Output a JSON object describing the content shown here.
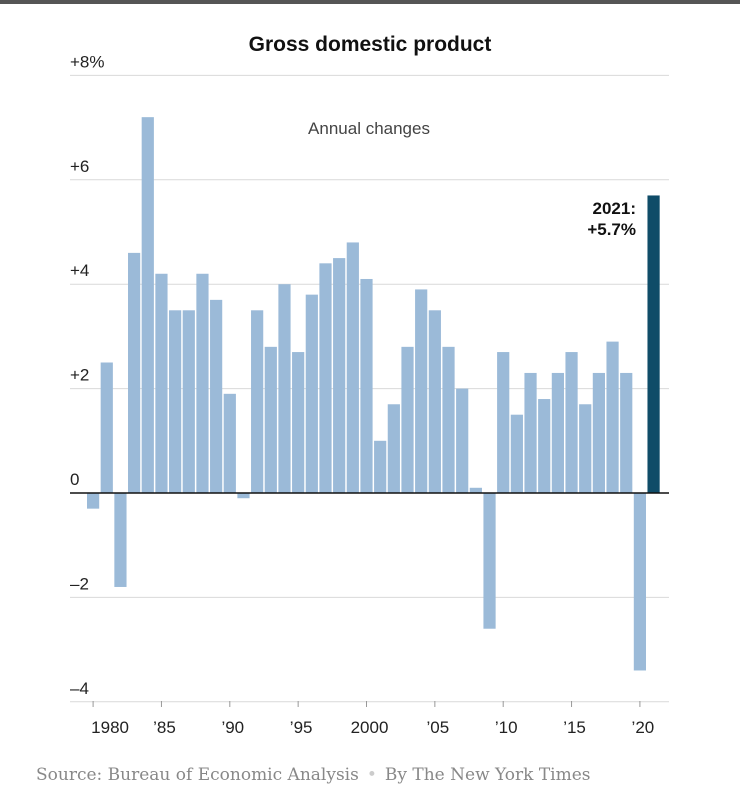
{
  "colors": {
    "bar": "#9bbad8",
    "highlight": "#0f4c68",
    "grid": "#d9d9d9",
    "axis": "#111111",
    "text": "#222222",
    "muted": "#888888"
  },
  "chart_data": {
    "type": "bar",
    "title": "Gross domestic product",
    "subtitle": "Annual changes",
    "xlabel": "",
    "ylabel": "",
    "ylim": [
      -4.2,
      8
    ],
    "y_ticks": [
      {
        "value": 8,
        "label": "+8%"
      },
      {
        "value": 6,
        "label": "+6"
      },
      {
        "value": 4,
        "label": "+4"
      },
      {
        "value": 2,
        "label": "+2"
      },
      {
        "value": 0,
        "label": "0"
      },
      {
        "value": -2,
        "label": "–2"
      },
      {
        "value": -4,
        "label": "–4"
      }
    ],
    "x_ticks": [
      {
        "year": 1980,
        "label": "1980"
      },
      {
        "year": 1985,
        "label": "’85"
      },
      {
        "year": 1990,
        "label": "’90"
      },
      {
        "year": 1995,
        "label": "’95"
      },
      {
        "year": 2000,
        "label": "2000"
      },
      {
        "year": 2005,
        "label": "’05"
      },
      {
        "year": 2010,
        "label": "’10"
      },
      {
        "year": 2015,
        "label": "’15"
      },
      {
        "year": 2020,
        "label": "’20"
      }
    ],
    "years": [
      1980,
      1981,
      1982,
      1983,
      1984,
      1985,
      1986,
      1987,
      1988,
      1989,
      1990,
      1991,
      1992,
      1993,
      1994,
      1995,
      1996,
      1997,
      1998,
      1999,
      2000,
      2001,
      2002,
      2003,
      2004,
      2005,
      2006,
      2007,
      2008,
      2009,
      2010,
      2011,
      2012,
      2013,
      2014,
      2015,
      2016,
      2017,
      2018,
      2019,
      2020,
      2021
    ],
    "values": [
      -0.3,
      2.5,
      -1.8,
      4.6,
      7.2,
      4.2,
      3.5,
      3.5,
      4.2,
      3.7,
      1.9,
      -0.1,
      3.5,
      2.8,
      4.0,
      2.7,
      3.8,
      4.4,
      4.5,
      4.8,
      4.1,
      1.0,
      1.7,
      2.8,
      3.9,
      3.5,
      2.8,
      2.0,
      0.1,
      -2.6,
      2.7,
      1.5,
      2.3,
      1.8,
      2.3,
      2.7,
      1.7,
      2.3,
      2.9,
      2.3,
      -3.4,
      5.7
    ],
    "highlight": {
      "year": 2021,
      "label_line1": "2021:",
      "label_line2": "+5.7%"
    }
  },
  "footer": {
    "source": "Source: Bureau of Economic Analysis",
    "separator": "•",
    "byline": "By The New York Times"
  }
}
